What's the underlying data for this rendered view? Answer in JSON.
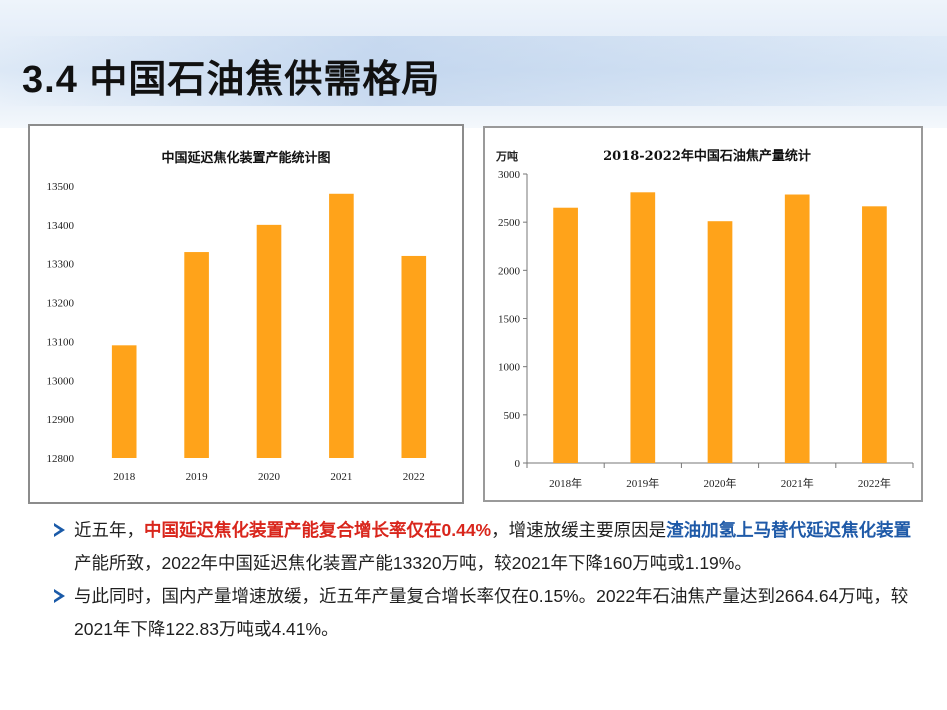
{
  "page": {
    "title": "3.4 中国石油焦供需格局"
  },
  "colors": {
    "bar": "#ffa31a",
    "highlight_red": "#d9261c",
    "highlight_blue": "#1f5aa8",
    "arrow": "#1a5aa8"
  },
  "chart_data": [
    {
      "type": "bar",
      "title": "中国延迟焦化装置产能统计图",
      "categories": [
        "2018",
        "2019",
        "2020",
        "2021",
        "2022"
      ],
      "values": [
        13090,
        13330,
        13400,
        13480,
        13320
      ],
      "ylim": [
        12800,
        13500
      ],
      "yticks": [
        "12800",
        "12900",
        "13000",
        "13100",
        "13200",
        "13300",
        "13400",
        "13500"
      ],
      "ytick_values": [
        12800,
        12900,
        13000,
        13100,
        13200,
        13300,
        13400,
        13500
      ],
      "ylabel": "",
      "xlabel": "",
      "grid": false
    },
    {
      "type": "bar",
      "title": "2018-2022年中国石油焦产量统计",
      "categories": [
        "2018年",
        "2019年",
        "2020年",
        "2021年",
        "2022年"
      ],
      "values": [
        2650,
        2810,
        2510,
        2787,
        2664.64
      ],
      "ylim": [
        0,
        3000
      ],
      "yticks": [
        "0",
        "500",
        "1000",
        "1500",
        "2000",
        "2500",
        "3000"
      ],
      "ytick_values": [
        0,
        500,
        1000,
        1500,
        2000,
        2500,
        3000
      ],
      "ylabel": "万吨",
      "xlabel": "",
      "grid": false
    }
  ],
  "notes": [
    {
      "p1": "近五年，",
      "p2": "中国延迟焦化装置产能复合增长率仅在0.44%",
      "p3": "，增速放缓主要原因是",
      "p4": "渣油加氢上马替代延迟焦化装置",
      "p5": "产能所致，2022年中国延迟焦化装置产能13320万吨，较2021年下降160万吨或1.19%。"
    },
    {
      "text": "与此同时，国内产量增速放缓，近五年产量复合增长率仅在0.15%。2022年石油焦产量达到2664.64万吨，较2021年下降122.83万吨或4.41%。"
    }
  ]
}
